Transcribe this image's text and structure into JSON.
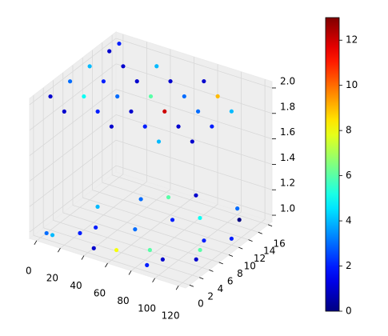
{
  "chart_data": {
    "type": "scatter3d",
    "colormap": "jet",
    "x": [
      0,
      0,
      0,
      0,
      0,
      20,
      20,
      20,
      20,
      40,
      40,
      40,
      40,
      60,
      60,
      60,
      60,
      80,
      80,
      80,
      80,
      100,
      100,
      100,
      100,
      120,
      120,
      120,
      5,
      10,
      25,
      30,
      45,
      55,
      60,
      70,
      80,
      85,
      95,
      100,
      105,
      110,
      115,
      120,
      15,
      35,
      50,
      65,
      90,
      110
    ],
    "y": [
      2,
      6,
      10,
      14,
      16,
      0,
      4,
      8,
      12,
      2,
      6,
      10,
      14,
      0,
      4,
      8,
      12,
      2,
      6,
      10,
      14,
      0,
      4,
      8,
      12,
      2,
      6,
      10,
      0,
      0,
      2,
      4,
      0,
      6,
      1,
      10,
      3,
      12,
      2,
      16,
      8,
      6,
      4,
      10,
      8,
      12,
      14,
      16,
      0,
      14
    ],
    "z": [
      2,
      2,
      2,
      2,
      2,
      2,
      2,
      2,
      2,
      2,
      2,
      2,
      2,
      2,
      2,
      2,
      2,
      2,
      2,
      2,
      2,
      2,
      2,
      2,
      2,
      2,
      2,
      2,
      1,
      1,
      1,
      1,
      1,
      1,
      1,
      1,
      1,
      1,
      1,
      1,
      1,
      1,
      1,
      1,
      1,
      1,
      1,
      1,
      1,
      1
    ],
    "values": [
      1,
      3,
      4,
      1,
      2,
      1,
      5,
      2,
      1,
      2,
      3,
      1,
      4,
      1,
      1,
      6,
      1,
      2,
      12,
      3,
      1,
      4,
      1,
      3,
      9,
      1,
      2,
      4,
      3,
      4,
      2,
      2,
      1,
      3,
      8,
      2,
      6,
      5,
      1,
      3,
      2,
      6,
      1,
      2,
      4,
      3,
      6,
      1,
      2,
      0
    ],
    "xlim": [
      -6,
      126
    ],
    "ylim": [
      -0.8,
      16.8
    ],
    "zlim": [
      0.95,
      2.05
    ],
    "xticks": [
      0,
      20,
      40,
      60,
      80,
      100,
      120
    ],
    "yticks": [
      0,
      2,
      4,
      6,
      8,
      10,
      12,
      14,
      16
    ],
    "zticks": [
      {
        "value": 1,
        "label": "1.0"
      },
      {
        "value": 1.2,
        "label": "1.2"
      },
      {
        "value": 1.4,
        "label": "1.4"
      },
      {
        "value": 1.6,
        "label": "1.6"
      },
      {
        "value": 1.8,
        "label": "1.8"
      },
      {
        "value": 2,
        "label": "2.0"
      }
    ],
    "clim": [
      0,
      13
    ],
    "cticks": [
      0,
      2,
      4,
      6,
      8,
      10,
      12
    ],
    "grid": true
  }
}
